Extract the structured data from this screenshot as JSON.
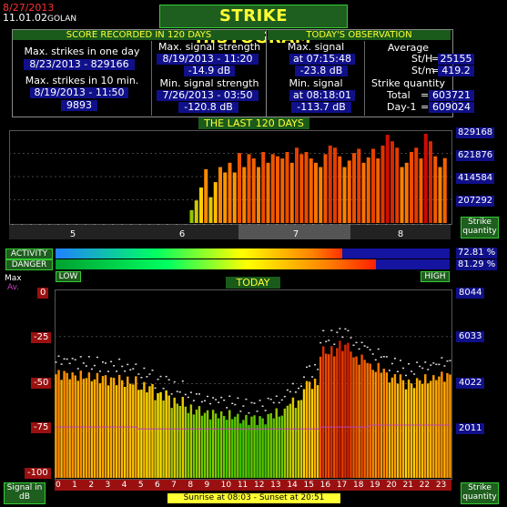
{
  "header": {
    "date": "8/27/2013",
    "version": "11.01.02",
    "station": "GOLAN",
    "title": "STRIKE HISTOGRAM"
  },
  "score": {
    "heading": "SCORE RECORDED IN 120 DAYS",
    "max_day_label": "Max. strikes in one day",
    "max_day_value": "8/23/2013 - 829166",
    "max_10min_label": "Max. strikes in 10 min.",
    "max_10min_date": "8/19/2013 - 11:50",
    "max_10min_value": "9893",
    "max_sig_label": "Max. signal strength",
    "max_sig_date": "8/19/2013 - 11:20",
    "max_sig_value": "-14.9 dB",
    "min_sig_label": "Min. signal strength",
    "min_sig_date": "7/26/2013 - 03:50",
    "min_sig_value": "-120.8 dB"
  },
  "today_obs": {
    "heading": "TODAY'S OBSERVATION",
    "max_sig_label": "Max. signal strength",
    "max_sig_time": "at 07:15:48",
    "max_sig_value": "-23.8 dB",
    "min_sig_label": "Min. signal strength",
    "min_sig_time": "at 08:18:01",
    "min_sig_value": "-113.7 dB",
    "average_label": "Average",
    "sth_label": "St/H",
    "sth_value": "25155",
    "stm_label": "St/m",
    "stm_value": "419.2",
    "qty_label": "Strike quantity",
    "total_label": "Total",
    "total_value": "603721",
    "day1_label": "Day-1",
    "day1_value": "609024"
  },
  "last120": {
    "title": "THE LAST 120 DAYS",
    "y_ticks": [
      "829168",
      "621876",
      "414584",
      "207292"
    ],
    "months": [
      "5",
      "6",
      "7",
      "8"
    ],
    "qty_label": "Strike quantity"
  },
  "activity": {
    "activity_label": "ACTIVITY",
    "danger_label": "DANGER",
    "activity_value": "72.81 %",
    "danger_value": "81.29 %",
    "activity_level": 0.7281,
    "danger_level": 0.8129,
    "low_label": "LOW",
    "high_label": "HIGH"
  },
  "today": {
    "title": "TODAY",
    "max_label": "Max",
    "av_label": "Av.",
    "left_ticks": [
      "0",
      "-25",
      "-50",
      "-75",
      "-100"
    ],
    "right_ticks": [
      "8044",
      "6033",
      "4022",
      "2011"
    ],
    "hours": [
      "0",
      "1",
      "2",
      "3",
      "4",
      "5",
      "6",
      "7",
      "8",
      "9",
      "10",
      "11",
      "12",
      "13",
      "14",
      "15",
      "16",
      "17",
      "18",
      "19",
      "20",
      "21",
      "22",
      "23"
    ],
    "signal_label": "Signal in dB",
    "qty_label": "Strike quantity",
    "sun_label": "Sunrise at 08:03  -  Sunset at 20:51"
  },
  "colors": {
    "green_header": "#1a5a1a",
    "yellow": "#ffff33",
    "value_bg": "#10108a",
    "red_date": "#ff3030"
  },
  "chart_data": [
    {
      "type": "bar",
      "title": "THE LAST 120 DAYS",
      "ylabel": "Strike quantity",
      "ylim": [
        0,
        829168
      ],
      "x_ticks": [
        "5",
        "6",
        "7",
        "8"
      ],
      "values_last_days": [
        120000,
        210000,
        330000,
        500000,
        240000,
        380000,
        520000,
        470000,
        560000,
        470000,
        650000,
        520000,
        640000,
        600000,
        520000,
        660000,
        560000,
        640000,
        620000,
        600000,
        660000,
        560000,
        700000,
        640000,
        660000,
        600000,
        560000,
        520000,
        640000,
        720000,
        700000,
        620000,
        520000,
        580000,
        650000,
        690000,
        560000,
        610000,
        690000,
        600000,
        720000,
        820000,
        760000,
        700000,
        520000,
        560000,
        660000,
        700000,
        600000,
        829166,
        760000,
        620000,
        520000,
        603721
      ]
    },
    {
      "type": "bar",
      "title": "TODAY",
      "ylabel": "Signal in dB",
      "ylim": [
        -100,
        0
      ],
      "x_ticks": [
        "0",
        "1",
        "2",
        "3",
        "4",
        "5",
        "6",
        "7",
        "8",
        "9",
        "10",
        "11",
        "12",
        "13",
        "14",
        "15",
        "16",
        "17",
        "18",
        "19",
        "20",
        "21",
        "22",
        "23"
      ],
      "series": [
        {
          "name": "Max",
          "values": [
            -45,
            -46,
            -47,
            -48,
            -49,
            -52,
            -56,
            -60,
            -64,
            -66,
            -67,
            -69,
            -69,
            -66,
            -60,
            -50,
            -33,
            -30,
            -37,
            -42,
            -47,
            -50,
            -48,
            -46
          ]
        },
        {
          "name": "Av.",
          "values": [
            -73,
            -73,
            -73,
            -73,
            -73,
            -74,
            -74,
            -74,
            -74,
            -74,
            -74,
            -74,
            -74,
            -74,
            -74,
            -74,
            -73,
            -73,
            -73,
            -72,
            -72,
            -72,
            -72,
            -72
          ]
        }
      ]
    }
  ]
}
